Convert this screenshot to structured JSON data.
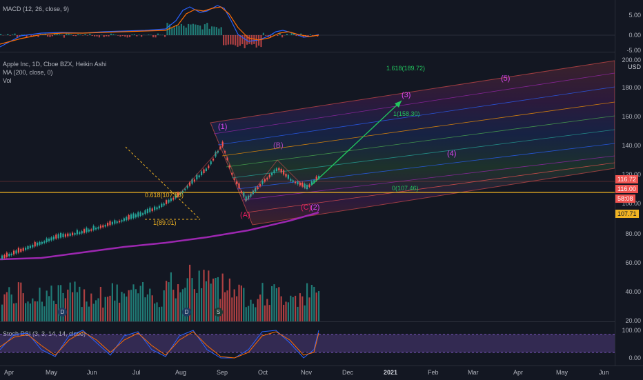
{
  "panes": {
    "macd": {
      "title": "MACD (12, 26, close, 9)",
      "ticks": [
        "5.00",
        "0.00",
        "-5.00"
      ]
    },
    "price": {
      "title": "Apple Inc, 1D, Cboe BZX, Heikin Ashi",
      "ma": "MA (200, close, 0)",
      "vol": "Vol",
      "currency": "USD",
      "ticks": [
        "200.00",
        "180.00",
        "160.00",
        "140.00",
        "120.00",
        "100.00",
        "80.00",
        "60.00",
        "40.00",
        "20.00"
      ]
    },
    "stoch": {
      "title": "Stoch RSI (3, 3, 14, 14, close)",
      "ticks": [
        "100.00",
        "0.00"
      ]
    }
  },
  "badges": {
    "last_price": "116.72",
    "price_b": "116.00",
    "countdown": "58:08",
    "level": "107.71"
  },
  "colors": {
    "bg": "#131722",
    "up": "#26a69a",
    "down": "#ef5350",
    "ma": "#9c27b0",
    "level": "#f0b323",
    "fib_green": "#4caf50",
    "wave": "#d946ef",
    "stoch_k": "#2962ff",
    "stoch_d": "#ff6d00"
  },
  "annotations": {
    "fib_0618": "0.618(107.86)",
    "fib_1": "1(89.01)",
    "wave_A": "(A)",
    "wave_B": "(B)",
    "wave_C": "(C)",
    "wave_1": "(1)",
    "wave_2": "(2)",
    "wave_3": "(3)",
    "wave_4": "(4)",
    "wave_5": "(5)",
    "fib_1618": "1.618(189.72)",
    "fib_1_158": "1(158.30)",
    "fib_0_107": "0(107.46)"
  },
  "events": {
    "d1": "D",
    "d2": "D",
    "s1": "S"
  },
  "xaxis": [
    "Apr",
    "May",
    "Jun",
    "Jul",
    "Aug",
    "Sep",
    "Oct",
    "Nov",
    "Dec",
    "2021",
    "Feb",
    "Mar",
    "Apr",
    "May",
    "Jun"
  ]
}
